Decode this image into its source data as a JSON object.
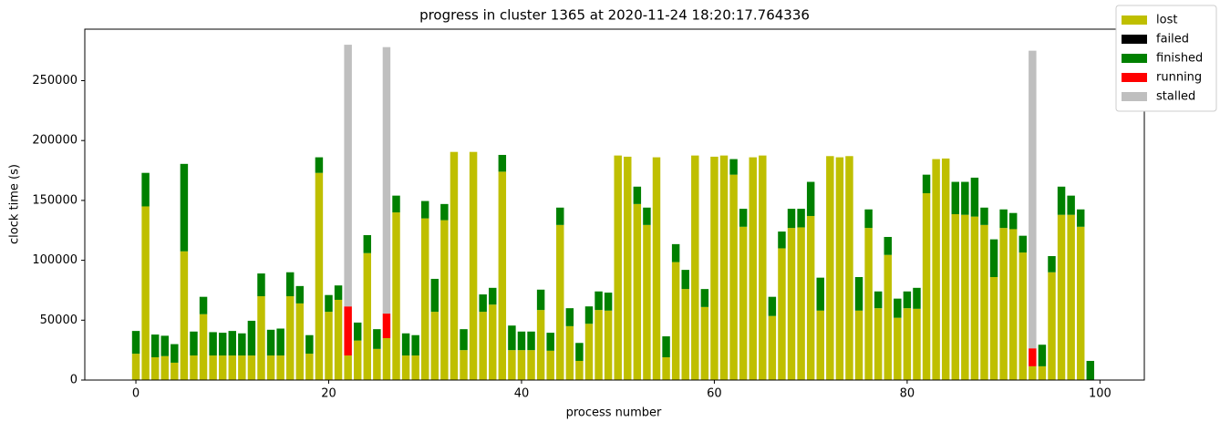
{
  "chart_data": {
    "type": "stacked_bar",
    "title": "progress in cluster 1365 at 2020-11-24 18:20:17.764336",
    "x_label": "process number",
    "y_label": "clock time (s)",
    "x": [
      0,
      1,
      2,
      3,
      4,
      5,
      6,
      7,
      8,
      9,
      10,
      11,
      12,
      13,
      14,
      15,
      16,
      17,
      18,
      19,
      20,
      21,
      22,
      23,
      24,
      25,
      26,
      27,
      28,
      29,
      30,
      31,
      32,
      33,
      34,
      35,
      36,
      37,
      38,
      39,
      40,
      41,
      42,
      43,
      44,
      45,
      46,
      47,
      48,
      49,
      50,
      51,
      52,
      53,
      54,
      55,
      56,
      57,
      58,
      59,
      60,
      61,
      62,
      63,
      64,
      65,
      66,
      67,
      68,
      69,
      70,
      71,
      72,
      73,
      74,
      75,
      76,
      77,
      78,
      79,
      80,
      81,
      82,
      83,
      84,
      85,
      86,
      87,
      88,
      89,
      90,
      91,
      92,
      93,
      94,
      95,
      96,
      97,
      98,
      99
    ],
    "series": [
      {
        "name": "lost",
        "color": "#bfbf00",
        "values": [
          22000,
          145000,
          19000,
          20000,
          14500,
          107500,
          20500,
          55000,
          20500,
          20500,
          20500,
          20500,
          20500,
          70000,
          20500,
          20500,
          70000,
          64000,
          22000,
          173000,
          57000,
          67000,
          20500,
          33000,
          106000,
          26000,
          35000,
          140000,
          20500,
          20500,
          135000,
          57000,
          133500,
          190500,
          25000,
          190500,
          57000,
          63000,
          174000,
          25000,
          25000,
          25000,
          58500,
          24500,
          129500,
          45000,
          16000,
          47000,
          58500,
          58000,
          187500,
          186500,
          147000,
          129500,
          186000,
          19000,
          98500,
          76000,
          187500,
          61000,
          186500,
          187500,
          171500,
          128000,
          186000,
          187500,
          53500,
          110000,
          127000,
          127500,
          137000,
          58000,
          187000,
          186000,
          187000,
          58000,
          127000,
          60000,
          104500,
          52000,
          60000,
          59500,
          156000,
          184500,
          185000,
          138500,
          138000,
          136500,
          129500,
          86000,
          127000,
          126000,
          106500,
          11500,
          11500,
          90000,
          138000,
          138000,
          128000,
          0
        ]
      },
      {
        "name": "failed",
        "color": "#000000",
        "values": [
          0,
          0,
          0,
          0,
          0,
          0,
          0,
          0,
          0,
          0,
          0,
          0,
          0,
          0,
          0,
          0,
          0,
          0,
          0,
          0,
          0,
          0,
          0,
          0,
          0,
          0,
          0,
          0,
          0,
          0,
          0,
          0,
          0,
          0,
          0,
          0,
          0,
          0,
          0,
          0,
          0,
          0,
          0,
          0,
          0,
          0,
          0,
          0,
          0,
          0,
          0,
          0,
          0,
          0,
          0,
          0,
          0,
          0,
          0,
          0,
          0,
          0,
          0,
          0,
          0,
          0,
          0,
          0,
          0,
          0,
          0,
          0,
          0,
          0,
          0,
          0,
          0,
          0,
          0,
          0,
          0,
          0,
          0,
          0,
          0,
          0,
          0,
          0,
          0,
          0,
          0,
          0,
          0,
          0,
          0,
          0,
          0,
          0,
          0,
          0
        ]
      },
      {
        "name": "finished",
        "color": "#008000",
        "values": [
          19000,
          28000,
          19000,
          17000,
          15500,
          73000,
          20000,
          14500,
          19500,
          19000,
          20500,
          18500,
          29000,
          19000,
          21500,
          22500,
          20000,
          14500,
          15500,
          13000,
          14000,
          12000,
          0,
          15000,
          15000,
          16500,
          0,
          14000,
          18500,
          17000,
          14500,
          27500,
          13500,
          0,
          17500,
          0,
          14500,
          14000,
          14000,
          20500,
          15500,
          15500,
          17000,
          15000,
          14500,
          15000,
          15000,
          14500,
          15500,
          15000,
          0,
          0,
          14500,
          14500,
          0,
          17500,
          15000,
          16000,
          0,
          15000,
          0,
          0,
          13000,
          15000,
          0,
          0,
          16000,
          14000,
          16000,
          15500,
          28500,
          27500,
          0,
          0,
          0,
          28000,
          15500,
          14000,
          15000,
          16000,
          14000,
          17500,
          15500,
          0,
          0,
          27000,
          27500,
          32500,
          14500,
          31500,
          15500,
          13500,
          14000,
          0,
          18000,
          13500,
          23500,
          16000,
          14500,
          16000
        ]
      },
      {
        "name": "running",
        "color": "#ff0000",
        "values": [
          0,
          0,
          0,
          0,
          0,
          0,
          0,
          0,
          0,
          0,
          0,
          0,
          0,
          0,
          0,
          0,
          0,
          0,
          0,
          0,
          0,
          0,
          41000,
          0,
          0,
          0,
          20500,
          0,
          0,
          0,
          0,
          0,
          0,
          0,
          0,
          0,
          0,
          0,
          0,
          0,
          0,
          0,
          0,
          0,
          0,
          0,
          0,
          0,
          0,
          0,
          0,
          0,
          0,
          0,
          0,
          0,
          0,
          0,
          0,
          0,
          0,
          0,
          0,
          0,
          0,
          0,
          0,
          0,
          0,
          0,
          0,
          0,
          0,
          0,
          0,
          0,
          0,
          0,
          0,
          0,
          0,
          0,
          0,
          0,
          0,
          0,
          0,
          0,
          0,
          0,
          0,
          0,
          0,
          15000,
          0,
          0,
          0,
          0,
          0,
          0
        ]
      },
      {
        "name": "stalled",
        "color": "#bfbfbf",
        "values": [
          0,
          0,
          0,
          0,
          0,
          0,
          0,
          0,
          0,
          0,
          0,
          0,
          0,
          0,
          0,
          0,
          0,
          0,
          0,
          0,
          0,
          0,
          218500,
          0,
          0,
          0,
          222500,
          0,
          0,
          0,
          0,
          0,
          0,
          0,
          0,
          0,
          0,
          0,
          0,
          0,
          0,
          0,
          0,
          0,
          0,
          0,
          0,
          0,
          0,
          0,
          0,
          0,
          0,
          0,
          0,
          0,
          0,
          0,
          0,
          0,
          0,
          0,
          0,
          0,
          0,
          0,
          0,
          0,
          0,
          0,
          0,
          0,
          0,
          0,
          0,
          0,
          0,
          0,
          0,
          0,
          0,
          0,
          0,
          0,
          0,
          0,
          0,
          0,
          0,
          0,
          0,
          0,
          0,
          248500,
          0,
          0,
          0,
          0,
          0,
          0
        ]
      }
    ],
    "xlim": [
      -5.3,
      104.6
    ],
    "xticks": [
      0,
      20,
      40,
      60,
      80,
      100
    ],
    "ylim": [
      0,
      293000
    ],
    "yticks": [
      0,
      50000,
      100000,
      150000,
      200000,
      250000
    ],
    "legend": "upper right"
  }
}
